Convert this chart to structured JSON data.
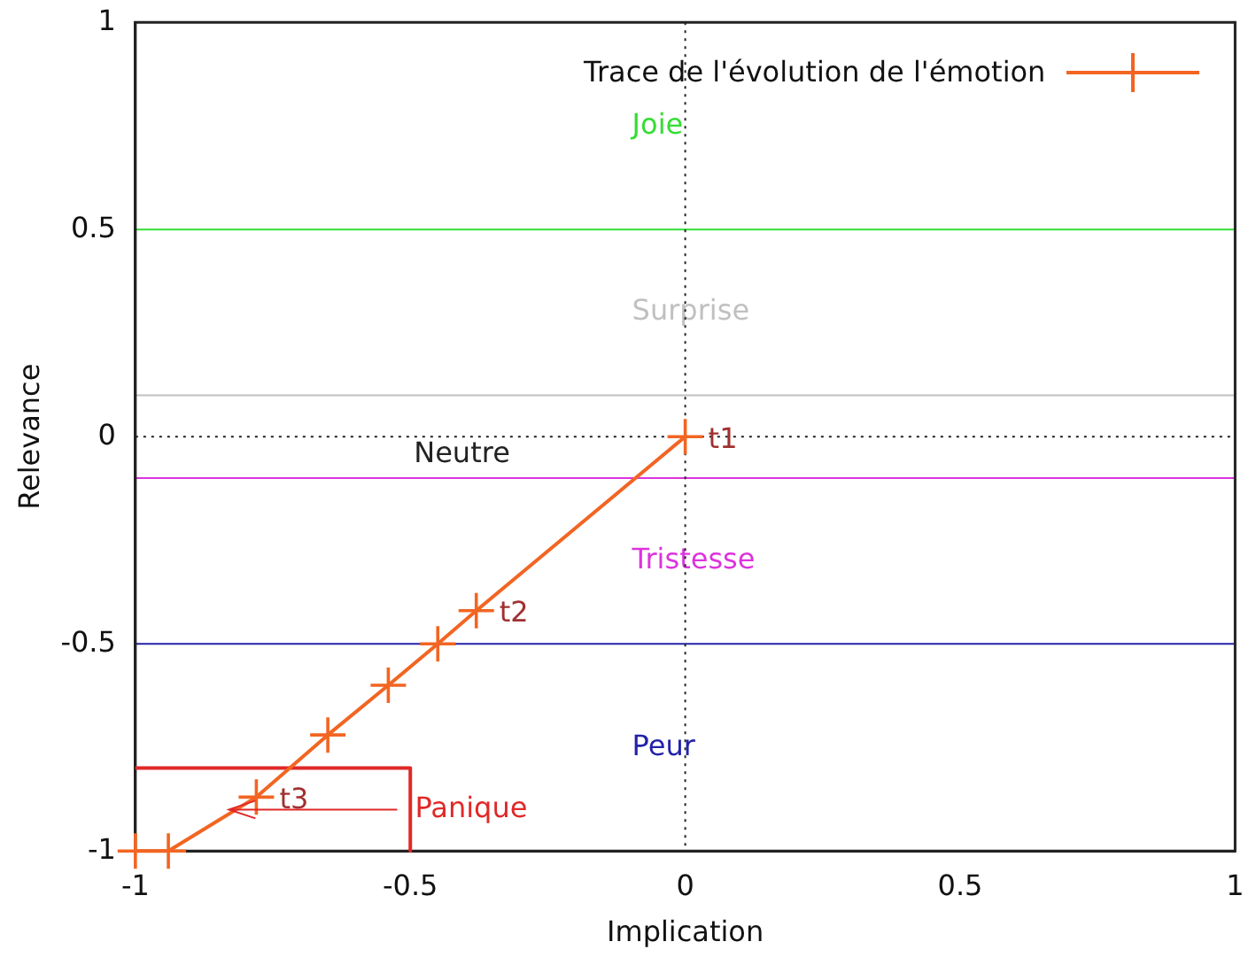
{
  "chart_data": {
    "type": "line",
    "xlabel": "Implication",
    "ylabel": "Relevance",
    "xlim": [
      -1,
      1
    ],
    "ylim": [
      -1,
      1
    ],
    "xticks": [
      -1,
      -0.5,
      0,
      0.5,
      1
    ],
    "yticks": [
      -1,
      -0.5,
      0,
      0.5,
      1
    ],
    "grid": false,
    "legend": "top right",
    "marker": "cross",
    "line_style": "solid",
    "series": [
      {
        "name": "Trace de l'évolution de l'émotion",
        "color": "#f26522",
        "x": [
          -1,
          -0.94,
          -0.78,
          -0.65,
          -0.54,
          -0.45,
          -0.38,
          0
        ],
        "values": [
          -1,
          -1,
          -0.87,
          -0.72,
          -0.6,
          -0.5,
          -0.42,
          0
        ]
      },
      {
        "color": "#e02828",
        "marker": "none",
        "x": [
          -1,
          -0.5,
          -0.5
        ],
        "values": [
          -0.8,
          -0.8,
          -1
        ]
      }
    ],
    "ref_lines": [
      {
        "axis": "y",
        "value": 0.5,
        "label": "Joie",
        "color": "#33dd33",
        "line_style": "solid"
      },
      {
        "axis": "y",
        "value": 0.1,
        "label": "Surprise",
        "color": "#c0c0c0",
        "line_style": "solid"
      },
      {
        "axis": "y",
        "value": 0,
        "label": "Neutre",
        "color": "#222222",
        "line_style": "dotted"
      },
      {
        "axis": "y",
        "value": -0.1,
        "label": "Tristesse",
        "color": "#dd33dd",
        "line_style": "solid"
      },
      {
        "axis": "y",
        "value": -0.5,
        "label": "Peur",
        "color": "#2222aa",
        "line_style": "solid"
      },
      {
        "axis": "x",
        "value": 0,
        "color": "#222222",
        "line_style": "dotted"
      }
    ],
    "annotations": [
      {
        "text": "t1",
        "x": 0,
        "y": 0
      },
      {
        "text": "t2",
        "x": -0.38,
        "y": -0.42
      },
      {
        "text": "t3",
        "x": -0.78,
        "y": -0.87
      },
      "Panique"
    ]
  }
}
